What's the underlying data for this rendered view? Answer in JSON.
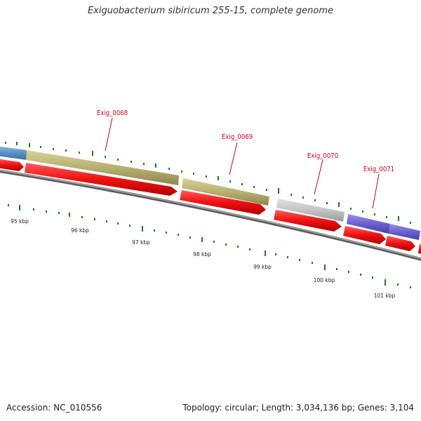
{
  "title": "Exiguobacterium sibiricum 255-15, complete genome",
  "accession": "Accession: NC_010556",
  "topology": "Topology: circular; Length: 3,034,136 bp; Genes: 3,104",
  "gene_labels": [
    "Exig_0068",
    "Exig_0069",
    "Exig_0070",
    "Exig_0071"
  ],
  "kbp_labels": [
    "95 kbp",
    "96 kbp",
    "97 kbp",
    "98 kbp",
    "99 kbp",
    "100 kbp",
    "101 kbp"
  ],
  "colors": {
    "blue_feature": "#5a8fc4",
    "olive_feature": "#b8b070",
    "gray_feature": "#c4c4c4",
    "purple_feature": "#6c5fd0",
    "cds_red": "#ee1111",
    "backbone": "#7a7a7a",
    "tick_green": "#1d7a1d",
    "label_red": "#d0021b"
  }
}
